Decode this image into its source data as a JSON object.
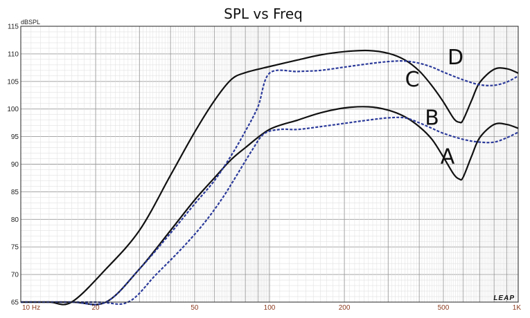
{
  "chart_data": {
    "type": "line",
    "title": "SPL vs Freq",
    "ylabel": "dBSPL",
    "xlabel": "",
    "xscale": "log",
    "xlim": [
      10,
      1000
    ],
    "ylim": [
      65,
      115
    ],
    "grid": true,
    "yticks": [
      "65",
      "70",
      "75",
      "80",
      "85",
      "90",
      "95",
      "100",
      "105",
      "110",
      "115"
    ],
    "xticks": [
      {
        "value": 10,
        "label": "10 Hz"
      },
      {
        "value": 20,
        "label": "20"
      },
      {
        "value": 50,
        "label": "50"
      },
      {
        "value": 100,
        "label": "100"
      },
      {
        "value": 200,
        "label": "200"
      },
      {
        "value": 500,
        "label": "500"
      },
      {
        "value": 1000,
        "label": "1K"
      }
    ],
    "series": [
      {
        "name": "A",
        "style": "solid",
        "color": "#111111",
        "x": [
          10,
          16,
          22,
          30,
          40,
          50,
          60,
          70,
          80,
          100,
          130,
          160,
          200,
          250,
          300,
          350,
          400,
          450,
          500,
          550,
          580,
          600,
          650,
          700,
          800,
          900,
          1000
        ],
        "y": [
          65,
          65,
          65,
          71,
          78,
          83.5,
          87.5,
          90.8,
          93,
          96.3,
          98,
          99.3,
          100.2,
          100.4,
          99.8,
          98.6,
          96.8,
          94.5,
          91.3,
          88.2,
          87.3,
          87.6,
          91.5,
          94.8,
          97.2,
          97.2,
          96.5
        ]
      },
      {
        "name": "B",
        "style": "dashed",
        "color": "#2b3a9a",
        "x": [
          10,
          20,
          27,
          35,
          45,
          55,
          65,
          75,
          85,
          95,
          110,
          130,
          160,
          200,
          250,
          300,
          350,
          400,
          450,
          500,
          600,
          700,
          800,
          900,
          1000
        ],
        "y": [
          65,
          65,
          65,
          70,
          75,
          79.5,
          84,
          88.5,
          92.5,
          95.5,
          96.3,
          96.3,
          96.8,
          97.4,
          98,
          98.4,
          98.4,
          97.5,
          96.5,
          95.6,
          94.5,
          94,
          94,
          94.8,
          95.8
        ]
      },
      {
        "name": "C",
        "style": "solid",
        "color": "#111111",
        "x": [
          10,
          13,
          16,
          22,
          30,
          40,
          50,
          60,
          70,
          80,
          100,
          130,
          160,
          200,
          250,
          300,
          350,
          400,
          450,
          500,
          550,
          580,
          600,
          650,
          700,
          800,
          900,
          1000
        ],
        "y": [
          65,
          65,
          65,
          71,
          78,
          88,
          95.8,
          101.5,
          105.3,
          106.6,
          107.7,
          108.9,
          109.8,
          110.4,
          110.6,
          110.1,
          108.9,
          106.9,
          104.2,
          101.3,
          98.3,
          97.6,
          98,
          101.6,
          104.8,
          107.2,
          107.3,
          106.5
        ]
      },
      {
        "name": "D",
        "style": "dashed",
        "color": "#2b3a9a",
        "x": [
          10,
          16,
          22,
          30,
          40,
          50,
          60,
          70,
          80,
          90,
          100,
          130,
          160,
          200,
          250,
          300,
          350,
          400,
          450,
          500,
          600,
          700,
          800,
          900,
          1000
        ],
        "y": [
          65,
          65,
          65,
          71,
          77.5,
          82.8,
          87,
          91.5,
          96,
          100.5,
          106.5,
          106.8,
          107,
          107.6,
          108.2,
          108.6,
          108.7,
          108.3,
          107.6,
          106.7,
          105.3,
          104.4,
          104.3,
          104.9,
          106
        ]
      }
    ],
    "annotations": [
      {
        "text": "A",
        "x": 520,
        "y": 91.5
      },
      {
        "text": "B",
        "x": 450,
        "y": 98.5
      },
      {
        "text": "C",
        "x": 375,
        "y": 105.5
      },
      {
        "text": "D",
        "x": 560,
        "y": 109.5
      }
    ],
    "watermark": "LEAP"
  }
}
